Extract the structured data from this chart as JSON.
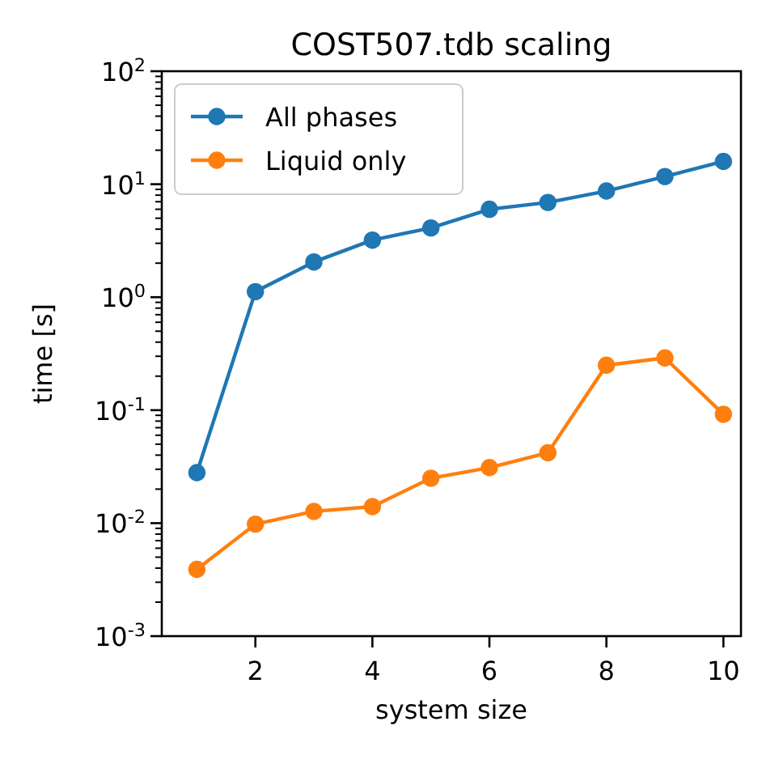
{
  "chart_data": {
    "type": "line",
    "title": "COST507.tdb scaling",
    "xlabel": "system size",
    "ylabel": "time [s]",
    "x": [
      1,
      2,
      3,
      4,
      5,
      6,
      7,
      8,
      9,
      10
    ],
    "series": [
      {
        "name": "All phases",
        "color": "#1f77b4",
        "values": [
          0.028,
          1.12,
          2.05,
          3.2,
          4.1,
          6.0,
          6.9,
          8.7,
          11.7,
          15.9
        ]
      },
      {
        "name": "Liquid only",
        "color": "#ff7f0e",
        "values": [
          0.0039,
          0.0098,
          0.0127,
          0.014,
          0.025,
          0.031,
          0.042,
          0.25,
          0.29,
          0.092
        ]
      }
    ],
    "log": "y",
    "xlim": [
      0.4,
      10.3
    ],
    "ylim": [
      0.001,
      100
    ],
    "xticks": [
      2,
      4,
      6,
      8,
      10
    ],
    "yticks": [
      {
        "value": 0.001,
        "label": "10$^{-3}$"
      },
      {
        "value": 0.01,
        "label": "10$^{-2}$"
      },
      {
        "value": 0.1,
        "label": "10$^{-1}$"
      },
      {
        "value": 1,
        "label": "10$^{0}$"
      },
      {
        "value": 10,
        "label": "10$^{1}$"
      },
      {
        "value": 100,
        "label": "10$^{2}$"
      }
    ],
    "legend": "top left",
    "marker": "circle",
    "line_style": "solid",
    "grid": false
  }
}
